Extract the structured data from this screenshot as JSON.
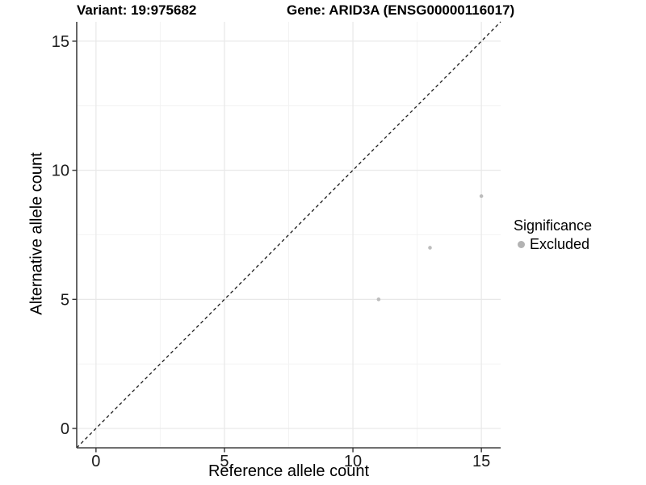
{
  "header": {
    "variant_title": "Variant: 19:975682",
    "gene_title": "Gene: ARID3A (ENSG00000116017)"
  },
  "chart_data": {
    "type": "scatter",
    "xlabel": "Reference allele count",
    "ylabel": "Alternative allele count",
    "xlim": [
      -0.75,
      15.75
    ],
    "ylim": [
      -0.75,
      15.75
    ],
    "x_ticks": [
      0,
      5,
      10,
      15
    ],
    "y_ticks": [
      0,
      5,
      10,
      15
    ],
    "x_minor_gridlines": [
      2.5,
      7.5,
      12.5
    ],
    "y_minor_gridlines": [
      2.5,
      7.5,
      12.5
    ],
    "grid": true,
    "identity_line": {
      "type": "y=x",
      "style": "dashed",
      "color": "#1a1a1a"
    },
    "series": [
      {
        "name": "Excluded",
        "color": "#bdbdbd",
        "points": [
          {
            "x": 11,
            "y": 5
          },
          {
            "x": 13,
            "y": 7
          },
          {
            "x": 15,
            "y": 9
          }
        ]
      }
    ],
    "legend": {
      "title": "Significance",
      "position": "right",
      "items": [
        {
          "label": "Excluded",
          "color": "#b3b3b3"
        }
      ]
    }
  },
  "colors": {
    "background": "#ffffff",
    "axis": "#404040",
    "tick": "#333333",
    "tick_label": "#1a1a1a",
    "grid_major": "#e8e8e8",
    "grid_minor": "#f3f3f3"
  }
}
